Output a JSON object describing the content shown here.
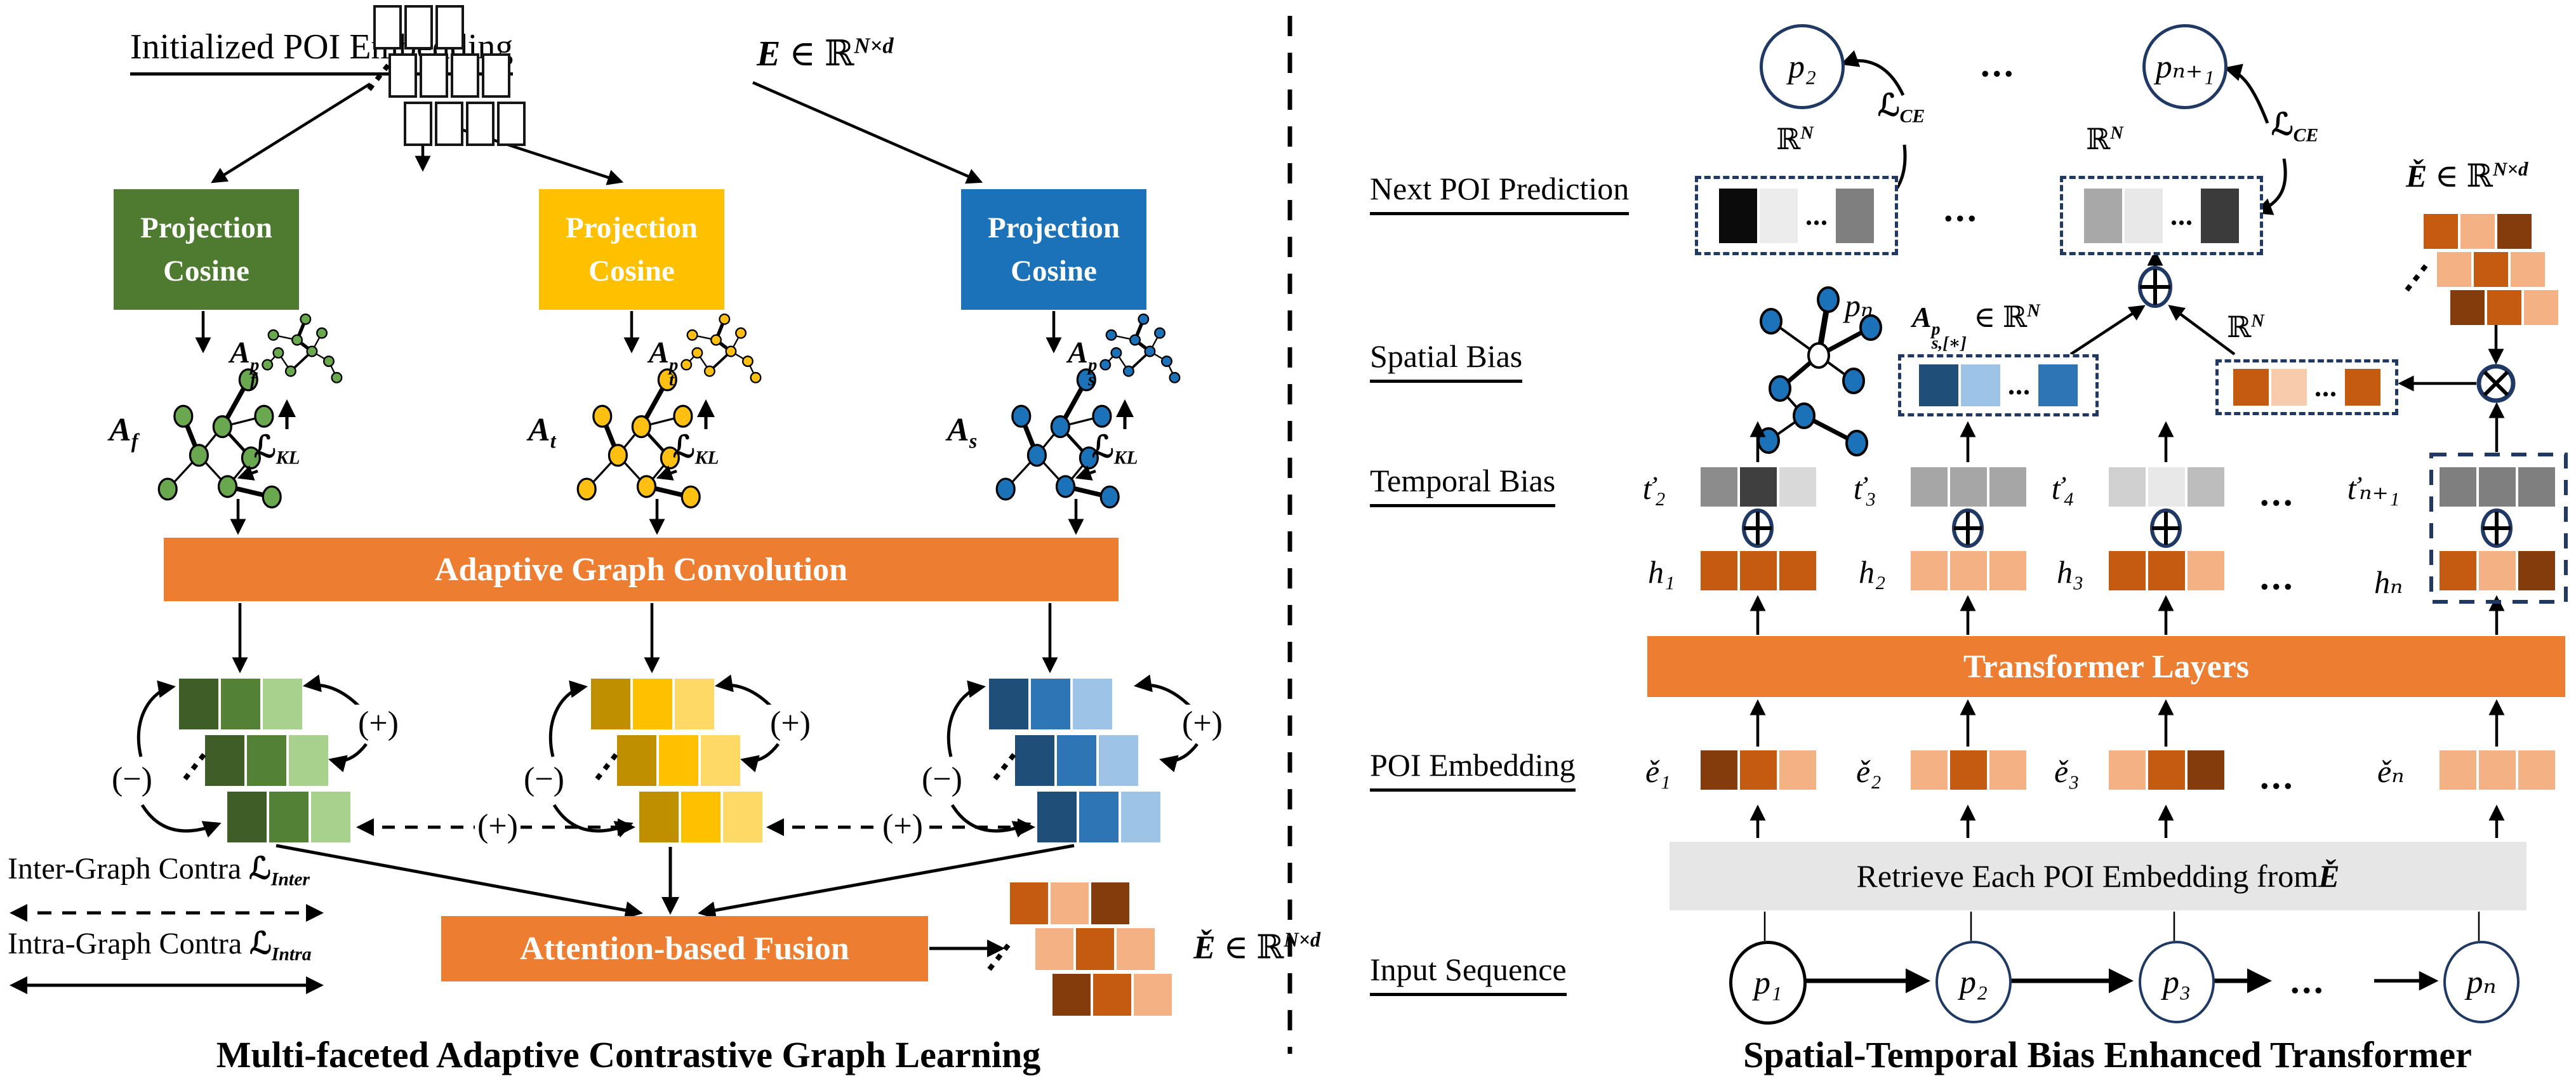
{
  "vdots": "⋮",
  "dots3": "...",
  "contrast": {
    "pos": "(+)",
    "neg": "(−)"
  },
  "left": {
    "title": "Initialized POI Embedding",
    "caption": "Multi-faceted Adaptive Contrastive Graph Learning",
    "agc_label": "Adaptive Graph Convolution",
    "fusion_label": "Attention-based Fusion",
    "proj_line1": "Projection",
    "proj_line2": "Cosine",
    "stack_rows": [
      [
        "#FFFFFF",
        "#FFFFFF",
        "#FFFFFF"
      ],
      [
        "#FFFFFF",
        "#FFFFFF",
        "#FFFFFF",
        "#FFFFFF"
      ],
      [
        "#FFFFFF",
        "#FFFFFF",
        "#FFFFFF",
        "#FFFFFF"
      ]
    ],
    "box_colors": [
      "#4E7B2F",
      "#FFC000",
      "#1B72B8"
    ],
    "node_colors": [
      "#6AA84F",
      "#FFC012",
      "#1B72B8"
    ],
    "graph_labels": [
      {
        "base": "A",
        "sub": "f"
      },
      {
        "base": "A",
        "sub": "t"
      },
      {
        "base": "A",
        "sub": "s"
      }
    ],
    "pgraph_labels": [
      {
        "base": "A",
        "sup": "p",
        "sub": "f"
      },
      {
        "base": "A",
        "sup": "p",
        "sub": "t"
      },
      {
        "base": "A",
        "sup": "p",
        "sub": "s"
      }
    ],
    "grid_palettes": [
      [
        "#3E5D27",
        "#538135",
        "#A9D18E"
      ],
      [
        "#BF8F00",
        "#FFC000",
        "#FFD966"
      ],
      [
        "#1F4E79",
        "#2E75B6",
        "#9DC3E6"
      ]
    ],
    "fused_grid_rows": [
      [
        "#C55A11",
        "#F4B183",
        "#843C0C"
      ],
      [
        "#F4B183",
        "#C55A11",
        "#F4B183"
      ],
      [
        "#843C0C",
        "#C55A11",
        "#F4B183"
      ]
    ],
    "legend": [
      {
        "text": "Inter-Graph Contra ",
        "loss": {
          "base": "ℒ",
          "sub": "Inter"
        }
      },
      {
        "text": "Intra-Graph Contra ",
        "loss": {
          "base": "ℒ",
          "sub": "Intra"
        }
      }
    ]
  },
  "formulas": {
    "E": {
      "base": "E",
      "mid": " ∈ ℝ",
      "sup": "N×d"
    },
    "Echeck": {
      "base": "Ě",
      "mid": " ∈ ℝ",
      "sup": "N×d"
    },
    "RN": {
      "base": "ℝ",
      "sup": "N"
    },
    "LKL": {
      "base": "ℒ",
      "sub": "KL"
    },
    "LCE": {
      "base": "ℒ",
      "sub": "CE"
    },
    "Aspatial": {
      "base": "A",
      "sup": "p",
      "sub": "s,[∗]",
      "mid": " ∈ ℝ",
      "sup2": "N"
    }
  },
  "right": {
    "caption": "Spatial-Temporal Bias Enhanced Transformer",
    "labels": {
      "next_poi": "Next POI Prediction",
      "spatial": "Spatial Bias",
      "temporal": "Temporal Bias",
      "poi_emb": "POI Embedding",
      "input_seq": "Input Sequence"
    },
    "pred_circles": [
      "p₂",
      "pₙ₊₁"
    ],
    "pred_boxes": [
      [
        "#0B0B0B",
        "#ECECEC",
        "...",
        "#7F7F7F"
      ],
      [
        "#A8A8A8",
        "#E8E8E8",
        "...",
        "#3B3B3B"
      ]
    ],
    "spatial_graph_label": "pₙ",
    "spatial_blue_cells": [
      "#1F4E79",
      "#9DC3E6",
      "...",
      "#2E75B6"
    ],
    "spatial_orange_cells": [
      "#C55A11",
      "#F8CBAD",
      "...",
      "#C55A11"
    ],
    "temporal_labels": [
      "ť₂",
      "ť₃",
      "ť₄",
      "ťₙ₊₁"
    ],
    "temporal_cells": [
      [
        "#8C8C8C",
        "#3F3F3F",
        "#D9D9D9"
      ],
      [
        "#A6A6A6",
        "#A6A6A6",
        "#A6A6A6"
      ],
      [
        "#D0D0D0",
        "#E8E8E8",
        "#BDBDBD"
      ],
      [
        "#7F7F7F",
        "#7F7F7F",
        "#7F7F7F"
      ]
    ],
    "hidden_labels": [
      "h₁",
      "h₂",
      "h₃",
      "hₙ"
    ],
    "hidden_cells": [
      [
        "#C55A11",
        "#C55A11",
        "#C55A11"
      ],
      [
        "#F4B183",
        "#F4B183",
        "#F4B183"
      ],
      [
        "#C55A11",
        "#C55A11",
        "#F4B183"
      ],
      [
        "#C55A11",
        "#F4B183",
        "#843C0C"
      ]
    ],
    "transformer_label": "Transformer Layers",
    "emb_labels": [
      "ě₁",
      "ě₂",
      "ě₃",
      "ěₙ"
    ],
    "emb_cells": [
      [
        "#843C0C",
        "#C55A11",
        "#F4B183"
      ],
      [
        "#F4B183",
        "#C55A11",
        "#F4B183"
      ],
      [
        "#F4B183",
        "#C55A11",
        "#843C0C"
      ],
      [
        "#F4B183",
        "#F4B183",
        "#F4B183"
      ]
    ],
    "retrieve_text": "Retrieve Each POI Embedding from ",
    "retrieve_emb": "Ě",
    "input_circles": [
      "p₁",
      "p₂",
      "p₃",
      "pₙ"
    ],
    "topright_grid_rows": [
      [
        "#C55A11",
        "#F4B183",
        "#843C0C"
      ],
      [
        "#F4B183",
        "#C55A11",
        "#F4B183"
      ],
      [
        "#843C0C",
        "#C55A11",
        "#F4B183"
      ]
    ]
  },
  "colors": {
    "orange_bar": "#ED7D31",
    "retrieve_bg": "#E7E6E6",
    "navy": "#203864"
  }
}
